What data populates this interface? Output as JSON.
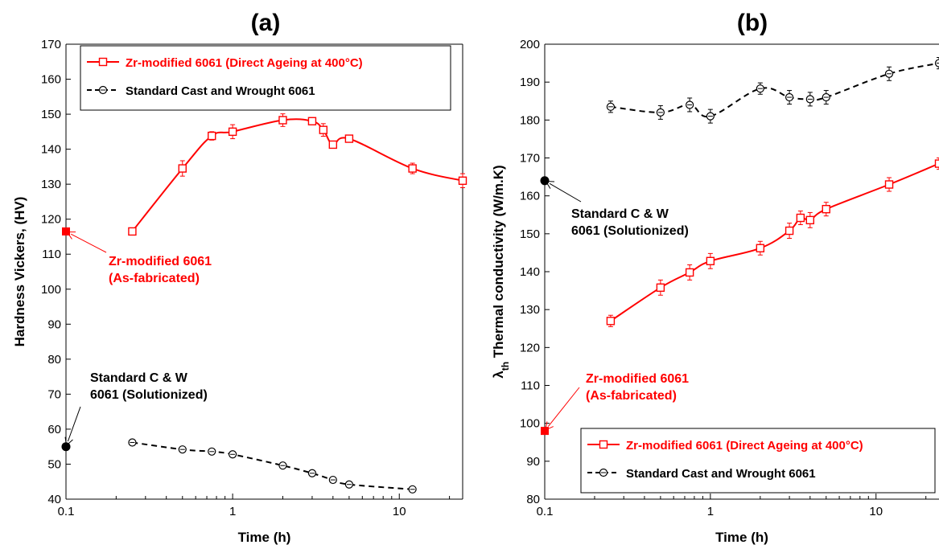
{
  "chart_data": [
    {
      "panel_label": "(a)",
      "type": "line",
      "xscale": "log",
      "xlim": [
        0.1,
        24
      ],
      "ylim": [
        40,
        170
      ],
      "xticks": [
        "0.1",
        "1",
        "10"
      ],
      "yticks": [
        "40",
        "50",
        "60",
        "70",
        "80",
        "90",
        "100",
        "110",
        "120",
        "130",
        "140",
        "150",
        "160",
        "170"
      ],
      "xlabel": "Time (h)",
      "ylabel": "Hardness Vickers, (HV)",
      "legend": "top",
      "series": [
        {
          "name": "Zr-modified 6061 (Direct Ageing at 400°C)",
          "color": "#ff0000",
          "marker": "square",
          "line": "solid",
          "x": [
            0.25,
            0.5,
            0.75,
            1,
            2,
            3,
            3.5,
            4,
            5,
            12,
            24
          ],
          "y": [
            116.5,
            134.5,
            143.8,
            145,
            148.3,
            148,
            145.5,
            141.3,
            143,
            134.5,
            131
          ],
          "err": [
            1,
            2.2,
            1.2,
            2,
            1.8,
            1,
            1.8,
            1,
            1,
            1.5,
            2
          ]
        },
        {
          "name": "Standard Cast and Wrought 6061",
          "color": "#000000",
          "marker": "circle",
          "line": "dashed",
          "x": [
            0.25,
            0.5,
            0.75,
            1,
            2,
            3,
            4,
            5,
            12
          ],
          "y": [
            56.2,
            54.2,
            53.6,
            52.8,
            49.6,
            47.4,
            45.5,
            44.2,
            42.8
          ],
          "err": [
            0.6,
            0.5,
            0.5,
            0.5,
            0.5,
            0.5,
            0.5,
            0.4,
            0.4
          ]
        }
      ],
      "annotations": [
        {
          "lines": [
            "Zr-modified  6061",
            "(As-fabricated)"
          ],
          "color": "#ff0000",
          "x": 0.1,
          "y": 116.5,
          "marker": "square"
        },
        {
          "lines": [
            "Standard C & W",
            "6061 (Solutionized)"
          ],
          "color": "#000000",
          "x": 0.1,
          "y": 55,
          "marker": "circle"
        }
      ]
    },
    {
      "panel_label": "(b)",
      "type": "line",
      "xscale": "log",
      "xlim": [
        0.1,
        24
      ],
      "ylim": [
        80,
        200
      ],
      "xticks": [
        "0.1",
        "1",
        "10"
      ],
      "yticks": [
        "80",
        "90",
        "100",
        "110",
        "120",
        "130",
        "140",
        "150",
        "160",
        "170",
        "180",
        "190",
        "200"
      ],
      "xlabel": "Time (h)",
      "ylabel_sub": "th",
      "ylabel": "λ",
      "ylabel_rest": " Thermal conductivity (W/m.K)",
      "legend": "bottom-right",
      "series": [
        {
          "name": "Zr-modified 6061 (Direct Ageing at 400°C)",
          "color": "#ff0000",
          "marker": "square",
          "line": "solid",
          "x": [
            0.25,
            0.5,
            0.75,
            1,
            2,
            3,
            3.5,
            4,
            5,
            12,
            24
          ],
          "y": [
            127,
            135.8,
            139.8,
            142.8,
            146.2,
            150.8,
            154.2,
            153.6,
            156.5,
            163,
            168.5
          ],
          "err": [
            1.5,
            2,
            2,
            2,
            1.8,
            2,
            1.8,
            2,
            1.8,
            1.8,
            1.5
          ]
        },
        {
          "name": "Standard Cast and Wrought 6061",
          "color": "#000000",
          "marker": "circle",
          "line": "dashed",
          "x": [
            0.25,
            0.5,
            0.75,
            1,
            2,
            3,
            4,
            5,
            12,
            24
          ],
          "y": [
            183.5,
            182,
            184,
            181,
            188.3,
            186,
            185.5,
            186,
            192.2,
            195
          ],
          "err": [
            1.5,
            1.8,
            1.8,
            1.8,
            1.5,
            1.8,
            1.8,
            1.8,
            1.8,
            1.5
          ]
        }
      ],
      "annotations": [
        {
          "lines": [
            "Standard C & W",
            "6061 (Solutionized)"
          ],
          "color": "#000000",
          "x": 0.1,
          "y": 164,
          "marker": "circle"
        },
        {
          "lines": [
            "Zr-modified  6061",
            "(As-fabricated)"
          ],
          "color": "#ff0000",
          "x": 0.1,
          "y": 98,
          "marker": "square"
        }
      ]
    }
  ]
}
